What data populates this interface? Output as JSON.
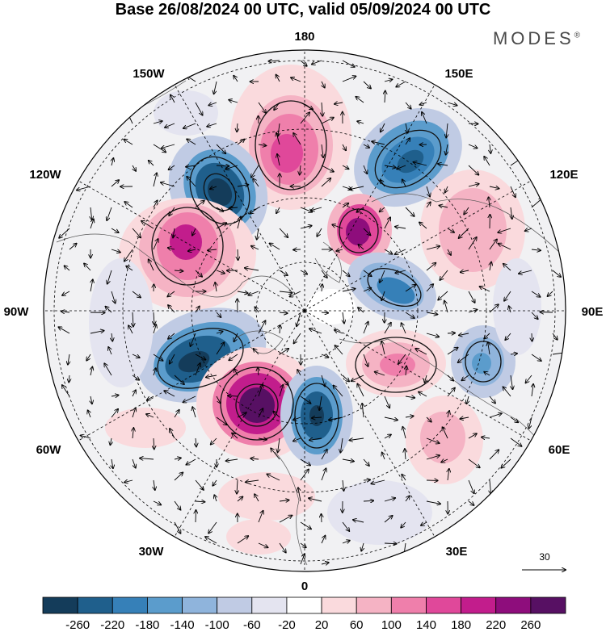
{
  "title": "Base 26/08/2024 00 UTC, valid 05/09/2024 00 UTC",
  "brand": "MODES",
  "brand_mark": "®",
  "map": {
    "projection": "north polar stereographic",
    "longitude_labels": {
      "top": "180",
      "top_left": "150W",
      "top_right": "150E",
      "upper_left": "120W",
      "upper_right": "120E",
      "left": "90W",
      "right": "90E",
      "lower_left": "60W",
      "lower_right": "60E",
      "bottom_left": "30W",
      "bottom_right": "30E",
      "bottom": "0"
    },
    "reference_vector": "30"
  },
  "colorbar": {
    "ticks": [
      "-260",
      "-220",
      "-180",
      "-140",
      "-100",
      "-60",
      "-20",
      "20",
      "60",
      "100",
      "140",
      "180",
      "220",
      "260"
    ],
    "colors": [
      "#143c5a",
      "#1f5f8c",
      "#3680b8",
      "#5b9ccc",
      "#8fb4dc",
      "#c0cbe4",
      "#e4e4f0",
      "#ffffff",
      "#fadadd",
      "#f5b3c4",
      "#ef7fab",
      "#e0489a",
      "#c21d8c",
      "#8e0d7c",
      "#571063"
    ]
  }
}
